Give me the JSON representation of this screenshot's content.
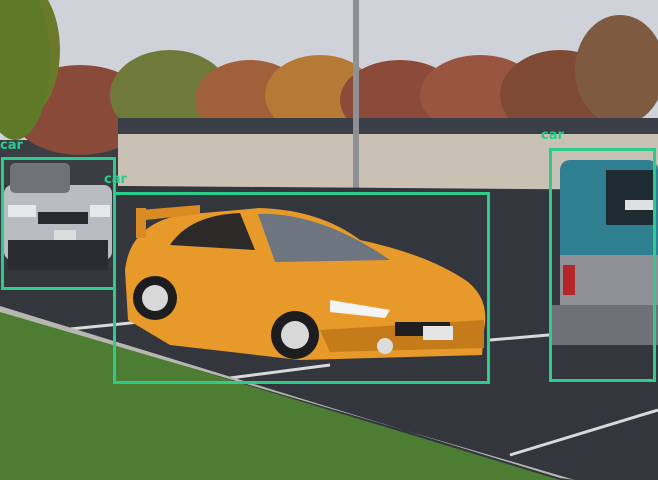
{
  "box_color": "#2ecc8a",
  "detections": [
    {
      "label": "car"
    },
    {
      "label": "car"
    },
    {
      "label": "car"
    }
  ]
}
